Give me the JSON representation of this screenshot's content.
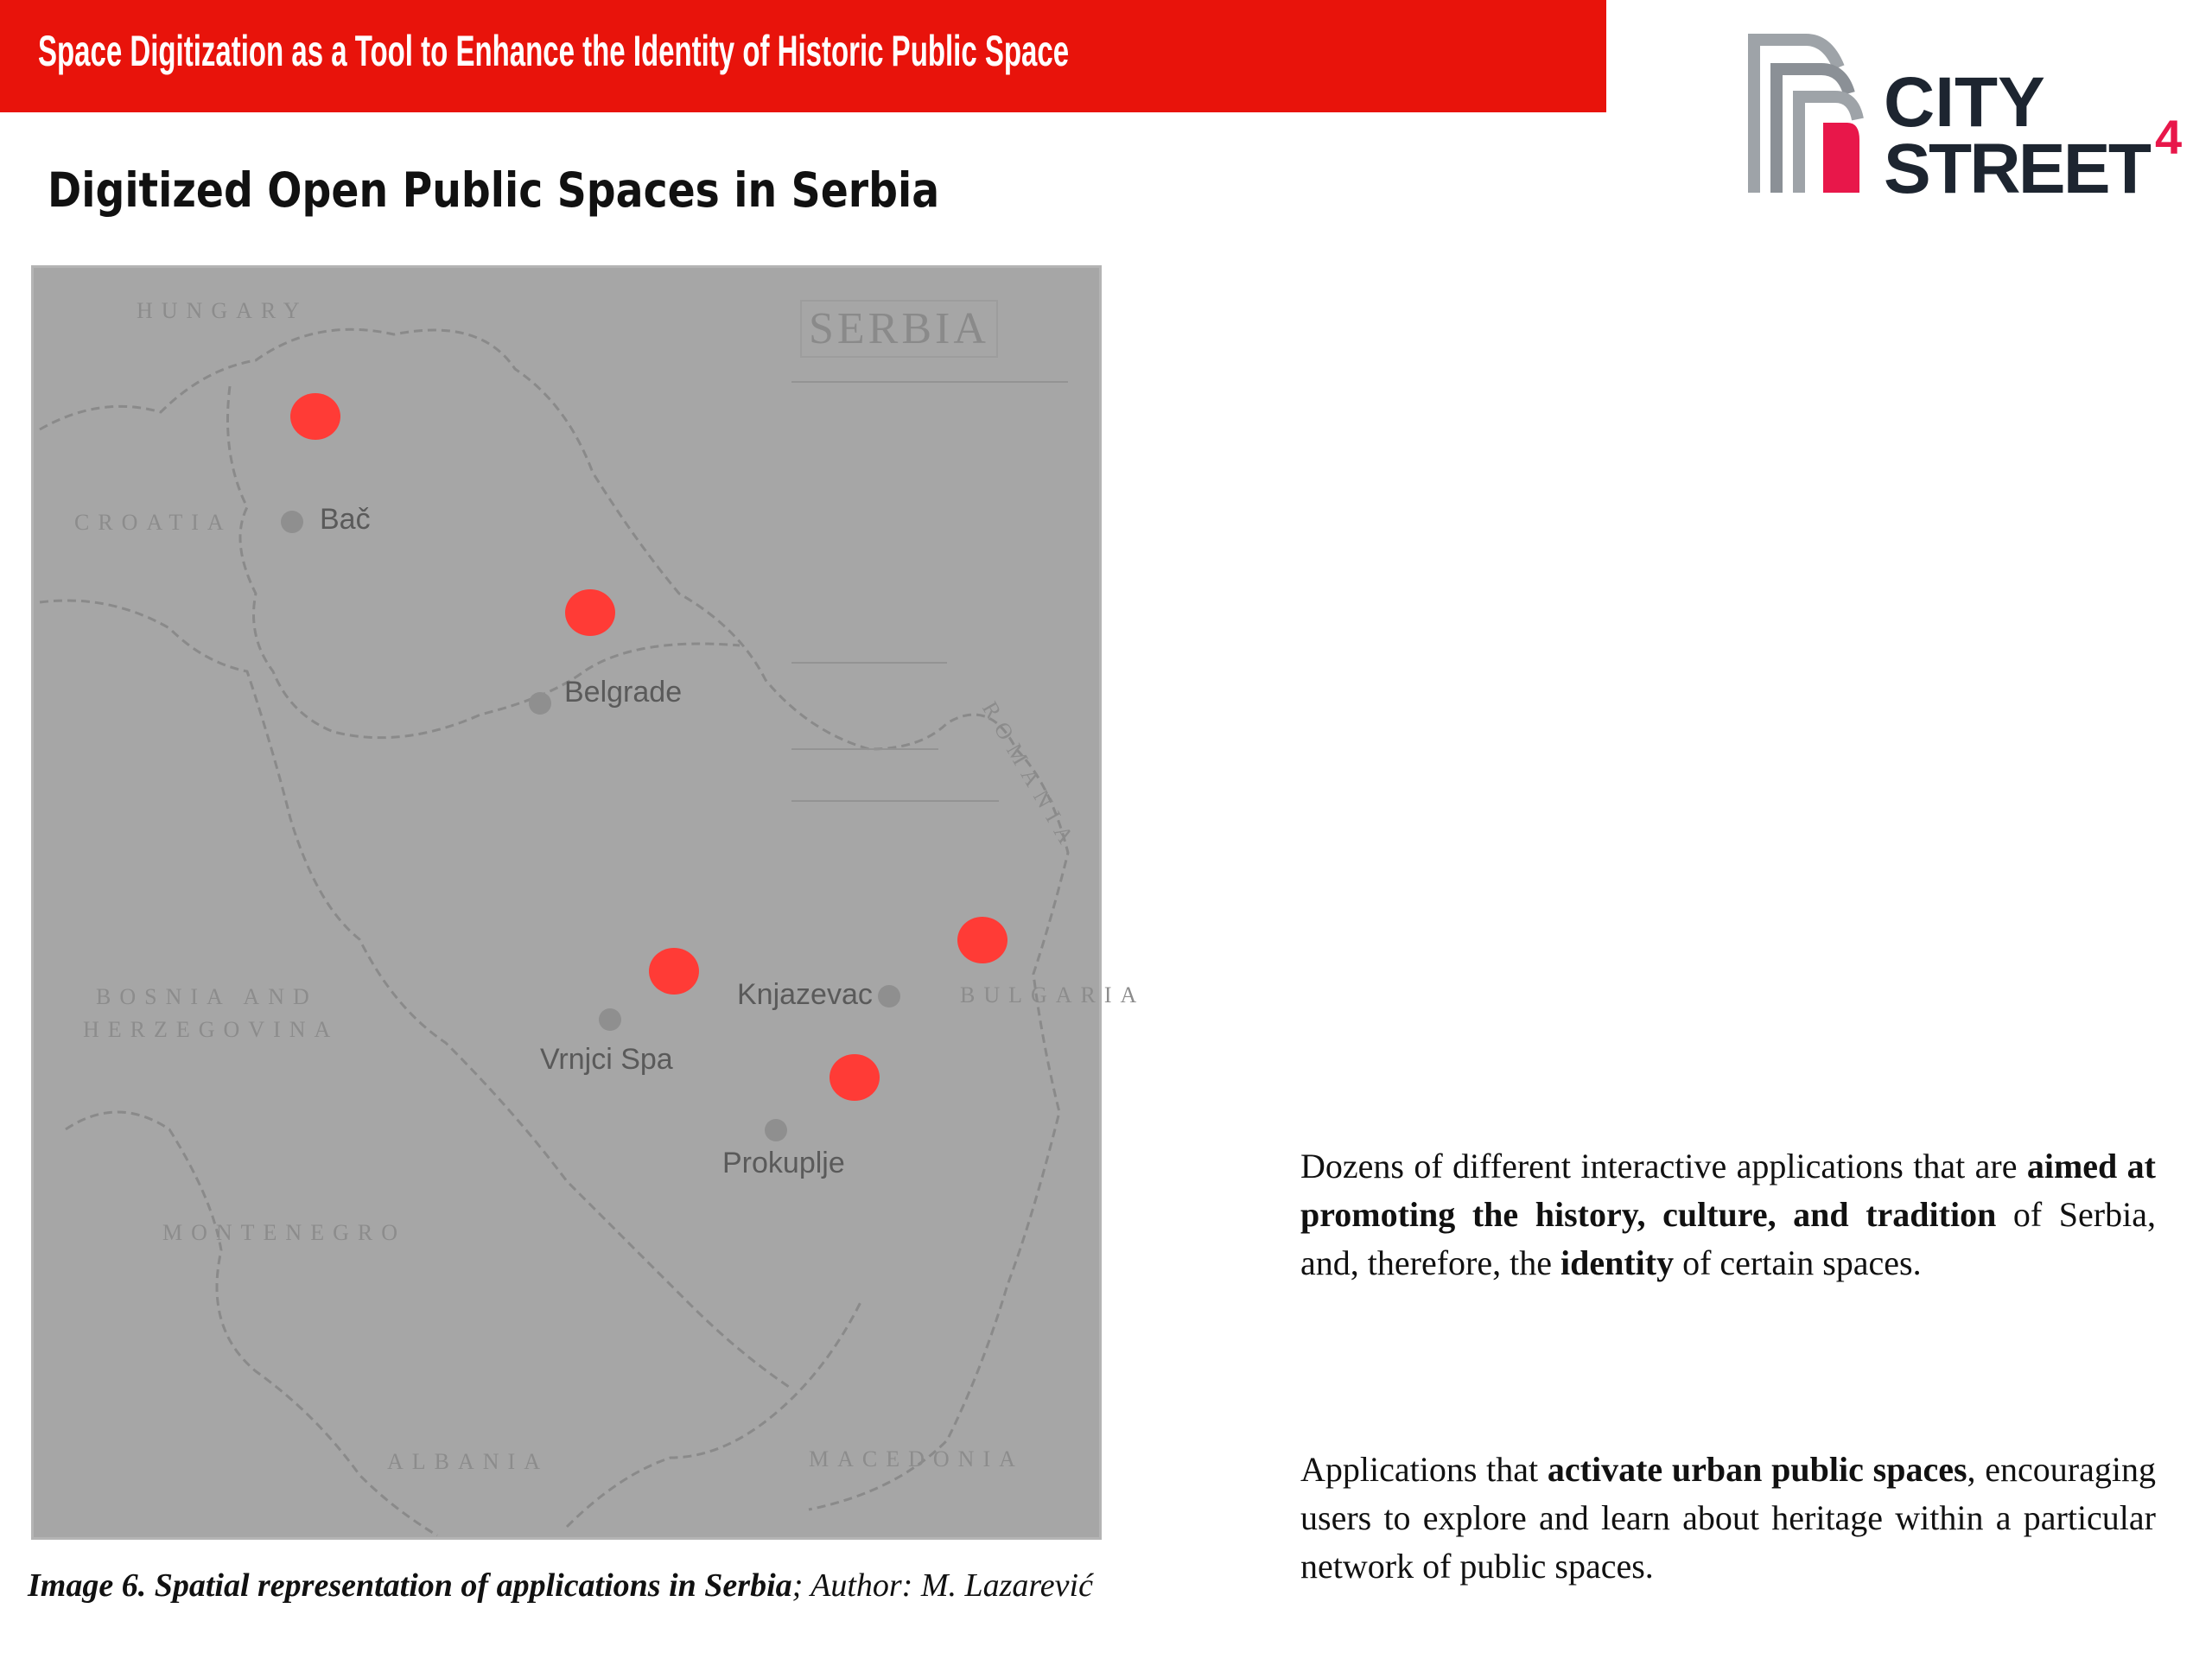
{
  "header": {
    "title": "Space Digitization as a Tool to Enhance the Identity of Historic Public Space",
    "accent_color": "#e8130b"
  },
  "logo": {
    "text_line1": "CITY",
    "text_line2": "STREET",
    "superscript": "4",
    "accent_color": "#e8174a"
  },
  "slide": {
    "heading": "Digitized Open Public Spaces in Serbia"
  },
  "map": {
    "title": "SERBIA",
    "marker_color": "#ff3b36",
    "countries": [
      "HUNGARY",
      "CROATIA",
      "ROMANIA",
      "BULGARIA",
      "BOSNIA AND",
      "HERZEGOVINA",
      "MONTENEGRO",
      "ALBANIA",
      "MACEDONIA"
    ],
    "cities": [
      "Bač",
      "Belgrade",
      "Knjazevac",
      "Vrnjci Spa",
      "Prokuplje"
    ],
    "application_markers": 5
  },
  "caption": {
    "bold": "Image 6. Spatial representation of applications in Serbia",
    "rest": "; Author: M. Lazarević"
  },
  "paragraphs": [
    {
      "p1": "Dozens of different interactive applications that are ",
      "b1": "aimed at promoting the history, culture, and tradition",
      "p2": " of Serbia, and, therefore, the ",
      "b2": "identity",
      "p3": " of certain spaces."
    },
    {
      "p1": "Applications that ",
      "b1": "activate urban public spaces",
      "p2": ", encouraging users to explore and learn about heritage within a particular network of public spaces."
    }
  ]
}
